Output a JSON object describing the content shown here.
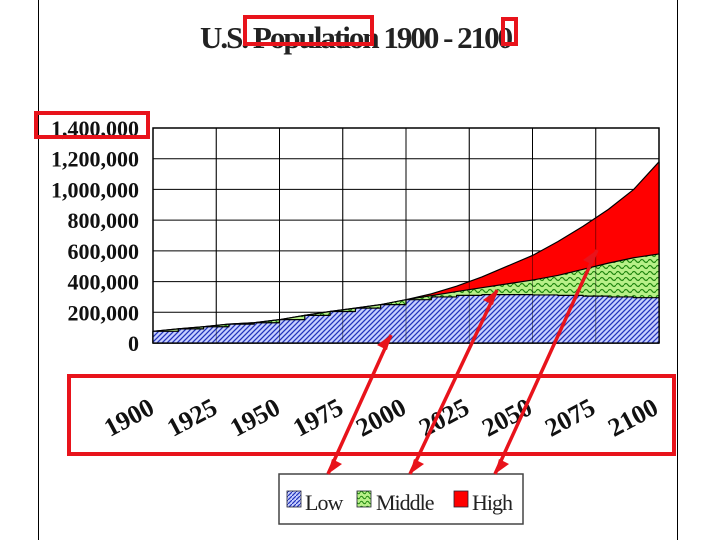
{
  "colors": {
    "low": "#3344cc",
    "middle": "#44cc22",
    "high": "#ff0000",
    "highlight": "#e8131b",
    "grid": "#000000"
  },
  "chart_data": {
    "type": "area",
    "title": "U.S. Population 1900 - 2100",
    "xlabel": "",
    "ylabel": "",
    "stacked": false,
    "xlim": [
      1900,
      2100
    ],
    "ylim": [
      0,
      1400000
    ],
    "y_ticks": [
      0,
      200000,
      400000,
      600000,
      800000,
      1000000,
      1200000,
      1400000
    ],
    "y_tick_labels": [
      "0",
      "200,000",
      "400,000",
      "600,000",
      "800,000",
      "1,000,000",
      "1,200,000",
      "1,400,000"
    ],
    "x_ticks": [
      1900,
      1925,
      1950,
      1975,
      2000,
      2025,
      2050,
      2075,
      2100
    ],
    "x_tick_labels": [
      "1900",
      "1925",
      "1950",
      "1975",
      "2000",
      "2025",
      "2050",
      "2075",
      "2100"
    ],
    "legend": [
      "Low",
      "Middle",
      "High"
    ],
    "legend_position": "bottom",
    "grid": true,
    "x": [
      1900,
      1910,
      1920,
      1930,
      1940,
      1950,
      1960,
      1970,
      1980,
      1990,
      2000,
      2010,
      2020,
      2030,
      2040,
      2050,
      2060,
      2070,
      2080,
      2090,
      2100
    ],
    "series": [
      {
        "name": "Low",
        "values": [
          76000,
          92000,
          106000,
          123000,
          132000,
          152000,
          180000,
          205000,
          227000,
          250000,
          282000,
          300000,
          310000,
          315000,
          315000,
          313000,
          310000,
          305000,
          300000,
          295000,
          285000
        ]
      },
      {
        "name": "Middle",
        "values": [
          76000,
          92000,
          106000,
          123000,
          132000,
          152000,
          180000,
          205000,
          227000,
          250000,
          282000,
          308000,
          335000,
          360000,
          385000,
          410000,
          440000,
          480000,
          520000,
          555000,
          580000
        ]
      },
      {
        "name": "High",
        "values": [
          76000,
          92000,
          106000,
          123000,
          132000,
          152000,
          180000,
          205000,
          227000,
          250000,
          282000,
          320000,
          370000,
          430000,
          500000,
          570000,
          660000,
          760000,
          870000,
          1000000,
          1180000
        ]
      }
    ]
  }
}
